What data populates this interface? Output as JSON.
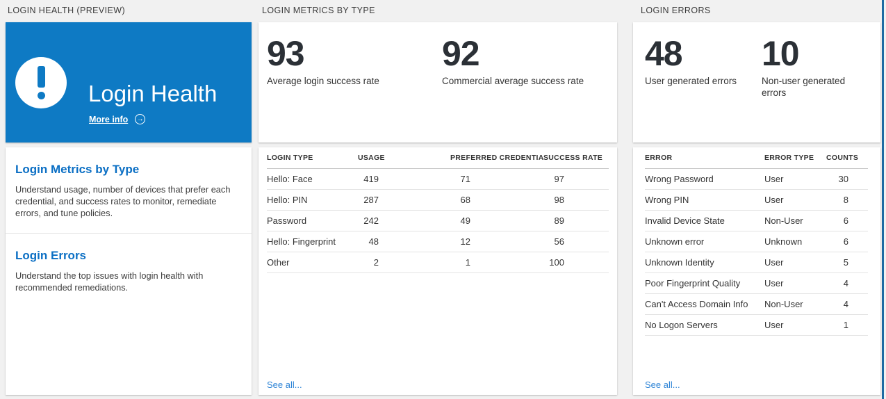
{
  "sections": {
    "health": {
      "header": "LOGIN HEALTH (PREVIEW)"
    },
    "metrics": {
      "header": "LOGIN METRICS BY TYPE"
    },
    "errors": {
      "header": "LOGIN ERRORS"
    }
  },
  "health_card": {
    "title": "Login Health",
    "more_info_label": "More info",
    "arrow_icon": "→",
    "icon": "alert-exclamation-icon"
  },
  "nav_cards": [
    {
      "title": "Login Metrics by Type",
      "description": "Understand usage, number of devices that prefer each credential, and success rates to monitor, remediate errors, and tune policies."
    },
    {
      "title": "Login Errors",
      "description": "Understand the top issues with login health with recommended remediations."
    }
  ],
  "metrics_panel": {
    "stats": [
      {
        "value": "93",
        "label": "Average login success rate"
      },
      {
        "value": "92",
        "label": "Commercial average success rate"
      }
    ],
    "table": {
      "headers": [
        "LOGIN TYPE",
        "USAGE",
        "PREFERRED CREDENTIAL",
        "SUCCESS RATE"
      ],
      "rows": [
        [
          "Hello: Face",
          "419",
          "71",
          "97"
        ],
        [
          "Hello: PIN",
          "287",
          "68",
          "98"
        ],
        [
          "Password",
          "242",
          "49",
          "89"
        ],
        [
          "Hello: Fingerprint",
          "48",
          "12",
          "56"
        ],
        [
          "Other",
          "2",
          "1",
          "100"
        ]
      ]
    },
    "see_all_label": "See all..."
  },
  "errors_panel": {
    "stats": [
      {
        "value": "48",
        "label": "User generated errors"
      },
      {
        "value": "10",
        "label": "Non-user generated errors"
      }
    ],
    "table": {
      "headers": [
        "ERROR",
        "ERROR TYPE",
        "COUNTS"
      ],
      "rows": [
        [
          "Wrong Password",
          "User",
          "30"
        ],
        [
          "Wrong PIN",
          "User",
          "8"
        ],
        [
          "Invalid Device State",
          "Non-User",
          "6"
        ],
        [
          "Unknown error",
          "Unknown",
          "6"
        ],
        [
          "Unknown Identity",
          "User",
          "5"
        ],
        [
          "Poor Fingerprint Quality",
          "User",
          "4"
        ],
        [
          "Can't Access Domain Info",
          "Non-User",
          "4"
        ],
        [
          "No Logon Servers",
          "User",
          "1"
        ]
      ]
    },
    "see_all_label": "See all..."
  },
  "colors": {
    "tile_blue": "#0e7ac4",
    "heading_blue": "#0b6fc4",
    "link_blue": "#2e84d6",
    "page_bg": "#f1f1f1",
    "window_edge_blue": "#1e6ba3",
    "big_number": "#2b3036"
  }
}
